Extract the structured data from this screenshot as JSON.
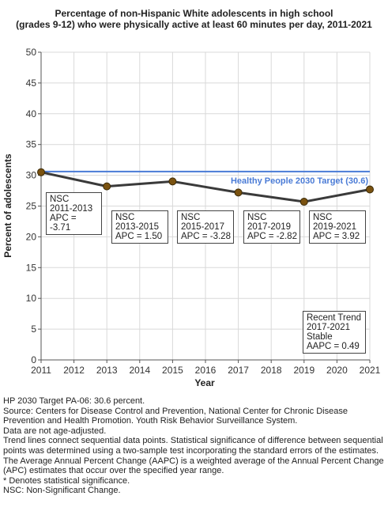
{
  "chart_data": {
    "type": "line",
    "title_line1": "Percentage of non-Hispanic White adolescents in high school",
    "title_line2": "(grades 9-12) who were physically active at least 60 minutes per day, 2011-2021",
    "xlabel": "Year",
    "ylabel": "Percent of adolescents",
    "ylim": [
      0,
      50
    ],
    "yticks": [
      0,
      5,
      10,
      15,
      20,
      25,
      30,
      35,
      40,
      45,
      50
    ],
    "xlim": [
      2011,
      2021
    ],
    "xticks": [
      2011,
      2012,
      2013,
      2014,
      2015,
      2016,
      2017,
      2018,
      2019,
      2020,
      2021
    ],
    "series": [
      {
        "x": [
          2011,
          2013,
          2015,
          2017,
          2019,
          2021
        ],
        "y": [
          30.5,
          28.2,
          29.0,
          27.2,
          25.7,
          27.7
        ]
      }
    ],
    "target": {
      "value": 30.6,
      "label": "Healthy People 2030 Target (30.6)",
      "color": "#4a7bd6"
    },
    "line_color": "#3a3a3a",
    "marker_color": "#7a5210",
    "annotations": [
      {
        "lines": [
          "NSC",
          "2011-2013",
          "APC = -3.71"
        ]
      },
      {
        "lines": [
          "NSC",
          "2013-2015",
          "APC =  1.50"
        ]
      },
      {
        "lines": [
          "NSC",
          "2015-2017",
          "APC = -3.28"
        ]
      },
      {
        "lines": [
          "NSC",
          "2017-2019",
          "APC = -2.82"
        ]
      },
      {
        "lines": [
          "NSC",
          "2019-2021",
          "APC =  3.92"
        ]
      },
      {
        "lines": [
          "Recent Trend",
          "2017-2021",
          "Stable",
          "AAPC =  0.49"
        ]
      }
    ],
    "grid": true
  },
  "notes": [
    "HP 2030 Target PA-06: 30.6 percent.",
    "Source: Centers for Disease Control and Prevention, National Center for Chronic Disease Prevention and Health Promotion. Youth Risk Behavior Surveillance System.",
    "Data are not age-adjusted.",
    "Trend lines connect sequential data points. Statistical significance of difference between sequential points was determined using a two-sample test incorporating the standard errors of the estimates.",
    "The Average Annual Percent Change (AAPC) is a weighted average of the Annual Percent Change (APC) estimates that occur over the specified year range.",
    "* Denotes statistical significance.",
    "NSC: Non-Significant Change."
  ]
}
